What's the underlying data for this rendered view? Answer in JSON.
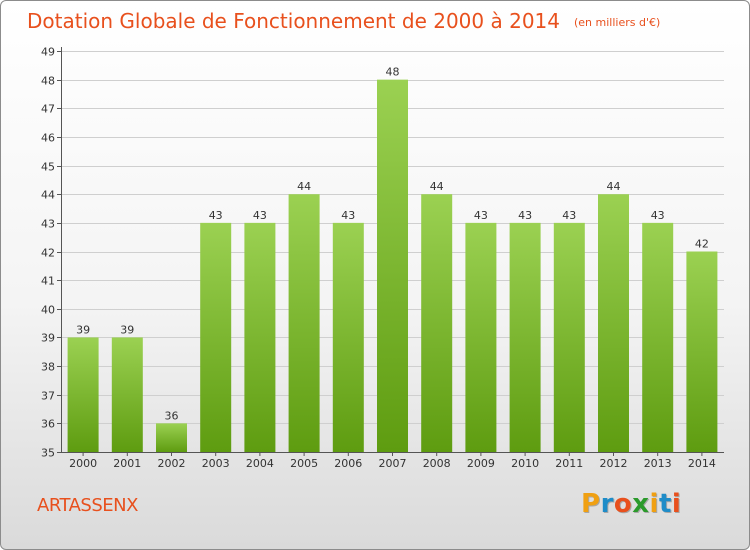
{
  "header": {
    "title": "Dotation Globale de Fonctionnement de 2000 à 2014",
    "unit": "(en milliers d'€)"
  },
  "footer": {
    "commune": "ARTASSENX",
    "logo": {
      "letters": [
        "P",
        "r",
        "o",
        "x",
        "i",
        "t",
        "i"
      ],
      "colors": [
        "#f0a012",
        "#1e8cc8",
        "#e8501d",
        "#2b9a2b",
        "#f0a012",
        "#1e8cc8",
        "#e8501d"
      ]
    }
  },
  "colors": {
    "title": "#e8501d",
    "bar_light": "#9bd152",
    "bar_dark": "#5e9c10"
  },
  "chart_data": {
    "type": "bar",
    "title": "Dotation Globale de Fonctionnement de 2000 à 2014",
    "subtitle": "(en milliers d'€)",
    "categories": [
      "2000",
      "2001",
      "2002",
      "2003",
      "2004",
      "2005",
      "2006",
      "2007",
      "2008",
      "2009",
      "2010",
      "2011",
      "2012",
      "2013",
      "2014"
    ],
    "values": [
      39,
      39,
      36,
      43,
      43,
      44,
      43,
      48,
      44,
      43,
      43,
      43,
      44,
      43,
      42
    ],
    "ylim": [
      35,
      49
    ],
    "yticks": [
      35,
      36,
      37,
      38,
      39,
      40,
      41,
      42,
      43,
      44,
      45,
      46,
      47,
      48,
      49
    ],
    "grid": true,
    "data_labels": true
  }
}
